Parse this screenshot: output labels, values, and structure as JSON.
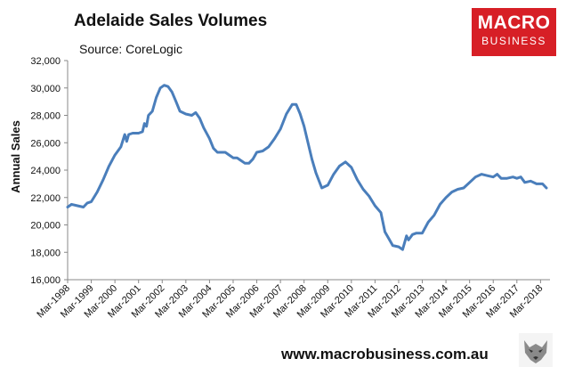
{
  "title": "Adelaide Sales Volumes",
  "subtitle": "Source: CoreLogic",
  "logo": {
    "line1": "MACRO",
    "line2": "BUSINESS"
  },
  "footer_url": "www.macrobusiness.com.au",
  "colors": {
    "line": "#4a7ebb",
    "logo_bg": "#d71f26",
    "axis": "#888888"
  },
  "chart_data": {
    "type": "line",
    "title": "Adelaide Sales Volumes",
    "ylabel": "Annual Sales",
    "xlabel": "",
    "ylim": [
      16000,
      32000
    ],
    "yticks": [
      "16,000",
      "18,000",
      "20,000",
      "22,000",
      "24,000",
      "26,000",
      "28,000",
      "30,000",
      "32,000"
    ],
    "ytick_values": [
      16000,
      18000,
      20000,
      22000,
      24000,
      26000,
      28000,
      30000,
      32000
    ],
    "xticks": [
      "Mar-1998",
      "Mar-1999",
      "Mar-2000",
      "Mar-2001",
      "Mar-2002",
      "Mar-2003",
      "Mar-2004",
      "Mar-2005",
      "Mar-2006",
      "Mar-2007",
      "Mar-2008",
      "Mar-2009",
      "Mar-2010",
      "Mar-2011",
      "Mar-2012",
      "Mar-2013",
      "Mar-2014",
      "Mar-2015",
      "Mar-2016",
      "Mar-2017",
      "Mar-2018"
    ],
    "grid": false,
    "legend": "none",
    "series": [
      {
        "values": [
          {
            "x": "1998-03",
            "y": 21300
          },
          {
            "x": "1998-05",
            "y": 21500
          },
          {
            "x": "1998-08",
            "y": 21400
          },
          {
            "x": "1998-11",
            "y": 21300
          },
          {
            "x": "1999-01",
            "y": 21600
          },
          {
            "x": "1999-03",
            "y": 21700
          },
          {
            "x": "1999-06",
            "y": 22400
          },
          {
            "x": "1999-09",
            "y": 23300
          },
          {
            "x": "1999-12",
            "y": 24300
          },
          {
            "x": "2000-03",
            "y": 25100
          },
          {
            "x": "2000-06",
            "y": 25700
          },
          {
            "x": "2000-08",
            "y": 26600
          },
          {
            "x": "2000-09",
            "y": 26100
          },
          {
            "x": "2000-10",
            "y": 26600
          },
          {
            "x": "2000-12",
            "y": 26700
          },
          {
            "x": "2001-03",
            "y": 26700
          },
          {
            "x": "2001-05",
            "y": 26800
          },
          {
            "x": "2001-06",
            "y": 27400
          },
          {
            "x": "2001-07",
            "y": 27200
          },
          {
            "x": "2001-08",
            "y": 28000
          },
          {
            "x": "2001-10",
            "y": 28300
          },
          {
            "x": "2001-12",
            "y": 29300
          },
          {
            "x": "2002-02",
            "y": 30000
          },
          {
            "x": "2002-04",
            "y": 30200
          },
          {
            "x": "2002-06",
            "y": 30100
          },
          {
            "x": "2002-08",
            "y": 29700
          },
          {
            "x": "2002-10",
            "y": 29000
          },
          {
            "x": "2002-12",
            "y": 28300
          },
          {
            "x": "2003-03",
            "y": 28100
          },
          {
            "x": "2003-06",
            "y": 28000
          },
          {
            "x": "2003-08",
            "y": 28200
          },
          {
            "x": "2003-10",
            "y": 27800
          },
          {
            "x": "2003-12",
            "y": 27100
          },
          {
            "x": "2004-03",
            "y": 26300
          },
          {
            "x": "2004-05",
            "y": 25600
          },
          {
            "x": "2004-07",
            "y": 25300
          },
          {
            "x": "2004-09",
            "y": 25300
          },
          {
            "x": "2004-11",
            "y": 25300
          },
          {
            "x": "2005-01",
            "y": 25100
          },
          {
            "x": "2005-03",
            "y": 24900
          },
          {
            "x": "2005-05",
            "y": 24900
          },
          {
            "x": "2005-07",
            "y": 24700
          },
          {
            "x": "2005-09",
            "y": 24500
          },
          {
            "x": "2005-11",
            "y": 24500
          },
          {
            "x": "2006-01",
            "y": 24800
          },
          {
            "x": "2006-03",
            "y": 25300
          },
          {
            "x": "2006-06",
            "y": 25400
          },
          {
            "x": "2006-09",
            "y": 25700
          },
          {
            "x": "2006-12",
            "y": 26300
          },
          {
            "x": "2007-03",
            "y": 27000
          },
          {
            "x": "2007-06",
            "y": 28100
          },
          {
            "x": "2007-09",
            "y": 28800
          },
          {
            "x": "2007-11",
            "y": 28800
          },
          {
            "x": "2008-01",
            "y": 28100
          },
          {
            "x": "2008-03",
            "y": 27200
          },
          {
            "x": "2008-05",
            "y": 26000
          },
          {
            "x": "2008-07",
            "y": 24800
          },
          {
            "x": "2008-09",
            "y": 23800
          },
          {
            "x": "2008-12",
            "y": 22700
          },
          {
            "x": "2009-03",
            "y": 22900
          },
          {
            "x": "2009-06",
            "y": 23700
          },
          {
            "x": "2009-09",
            "y": 24300
          },
          {
            "x": "2009-12",
            "y": 24600
          },
          {
            "x": "2010-03",
            "y": 24200
          },
          {
            "x": "2010-06",
            "y": 23300
          },
          {
            "x": "2010-09",
            "y": 22600
          },
          {
            "x": "2010-12",
            "y": 22100
          },
          {
            "x": "2011-03",
            "y": 21400
          },
          {
            "x": "2011-06",
            "y": 20900
          },
          {
            "x": "2011-08",
            "y": 19500
          },
          {
            "x": "2011-10",
            "y": 19000
          },
          {
            "x": "2011-12",
            "y": 18500
          },
          {
            "x": "2012-03",
            "y": 18400
          },
          {
            "x": "2012-05",
            "y": 18200
          },
          {
            "x": "2012-07",
            "y": 19200
          },
          {
            "x": "2012-08",
            "y": 18900
          },
          {
            "x": "2012-10",
            "y": 19300
          },
          {
            "x": "2012-12",
            "y": 19400
          },
          {
            "x": "2013-03",
            "y": 19400
          },
          {
            "x": "2013-06",
            "y": 20200
          },
          {
            "x": "2013-09",
            "y": 20700
          },
          {
            "x": "2013-12",
            "y": 21500
          },
          {
            "x": "2014-03",
            "y": 22000
          },
          {
            "x": "2014-06",
            "y": 22400
          },
          {
            "x": "2014-09",
            "y": 22600
          },
          {
            "x": "2014-12",
            "y": 22700
          },
          {
            "x": "2015-03",
            "y": 23100
          },
          {
            "x": "2015-06",
            "y": 23500
          },
          {
            "x": "2015-09",
            "y": 23700
          },
          {
            "x": "2015-12",
            "y": 23600
          },
          {
            "x": "2016-03",
            "y": 23500
          },
          {
            "x": "2016-05",
            "y": 23700
          },
          {
            "x": "2016-07",
            "y": 23400
          },
          {
            "x": "2016-10",
            "y": 23400
          },
          {
            "x": "2017-01",
            "y": 23500
          },
          {
            "x": "2017-03",
            "y": 23400
          },
          {
            "x": "2017-05",
            "y": 23500
          },
          {
            "x": "2017-07",
            "y": 23100
          },
          {
            "x": "2017-10",
            "y": 23200
          },
          {
            "x": "2018-01",
            "y": 23000
          },
          {
            "x": "2018-04",
            "y": 23000
          },
          {
            "x": "2018-06",
            "y": 22700
          }
        ]
      }
    ]
  }
}
